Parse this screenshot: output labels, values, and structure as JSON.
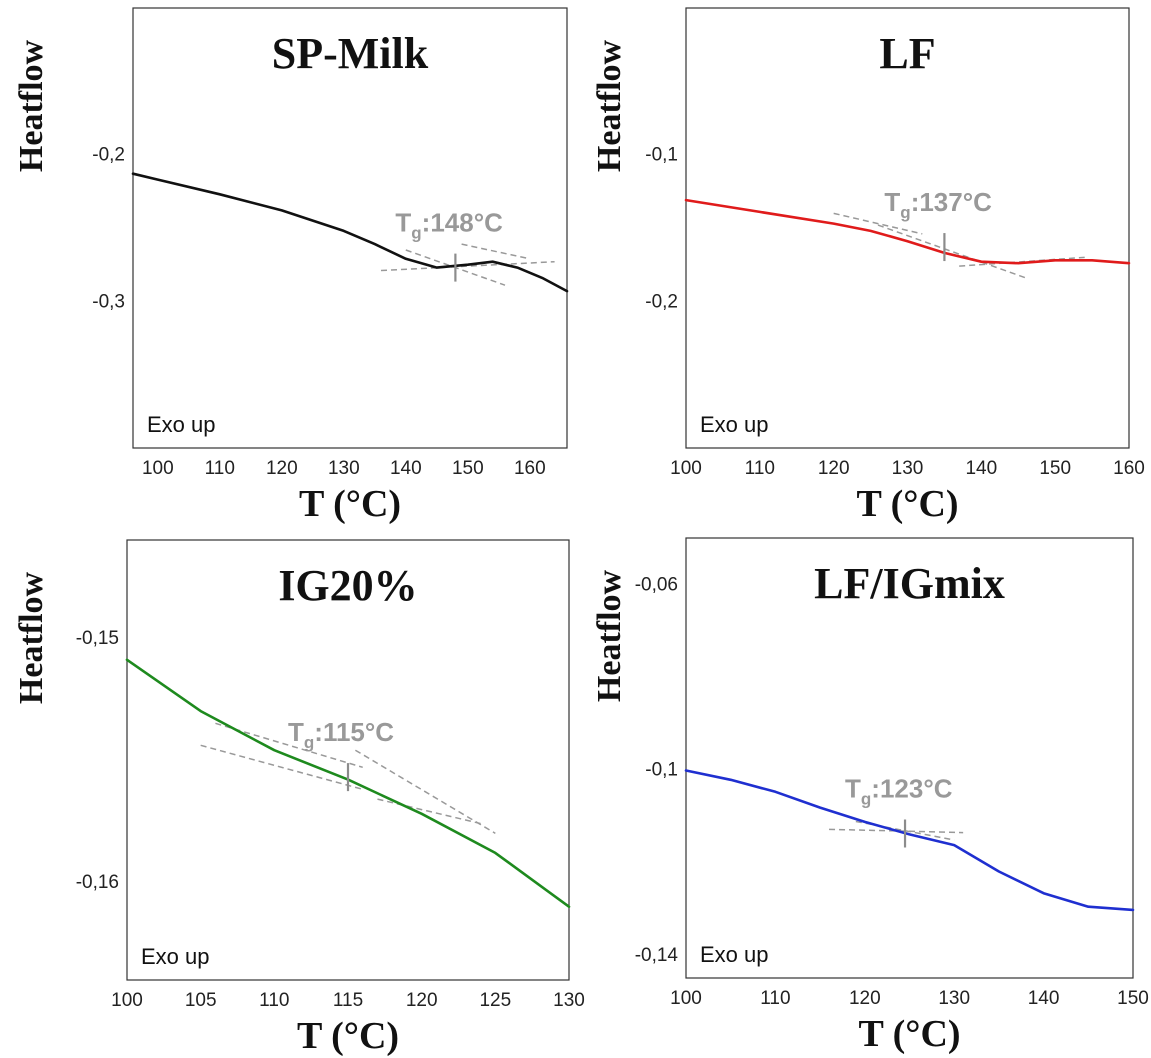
{
  "chart_data": [
    {
      "type": "line",
      "title": "SP-Milk",
      "xlabel": "T (°C)",
      "ylabel": "Heatflow",
      "xlim": [
        96,
        166
      ],
      "ylim": [
        -0.4,
        -0.1
      ],
      "x_ticks": [
        100,
        110,
        120,
        130,
        140,
        150,
        160
      ],
      "y_ticks": [
        {
          "value": -0.2,
          "label": "-0,2"
        },
        {
          "value": -0.3,
          "label": "-0,3"
        }
      ],
      "annotation": "Exo up",
      "tg_prefix": "T",
      "tg_sub": "g",
      "tg_value": ":148°C",
      "tg_x": 148,
      "tg_y": -0.277,
      "color": "#111111",
      "series": [
        {
          "x": [
            96,
            100,
            110,
            120,
            130,
            135,
            140,
            145,
            150,
            154,
            158,
            162,
            166
          ],
          "y": [
            -0.213,
            -0.217,
            -0.227,
            -0.238,
            -0.252,
            -0.261,
            -0.271,
            -0.277,
            -0.275,
            -0.273,
            -0.277,
            -0.284,
            -0.293
          ]
        }
      ],
      "guides": [
        {
          "x": [
            136,
            164
          ],
          "y": [
            -0.279,
            -0.273
          ]
        },
        {
          "x": [
            140,
            156
          ],
          "y": [
            -0.265,
            -0.289
          ]
        },
        {
          "x": [
            149,
            160
          ],
          "y": [
            -0.261,
            -0.271
          ]
        }
      ]
    },
    {
      "type": "line",
      "title": "LF",
      "xlabel": "T (°C)",
      "ylabel": "Heatflow",
      "xlim": [
        100,
        160
      ],
      "ylim": [
        -0.3,
        -0.0
      ],
      "x_ticks": [
        100,
        110,
        120,
        130,
        140,
        150,
        160
      ],
      "y_ticks": [
        {
          "value": -0.1,
          "label": "-0,1"
        },
        {
          "value": -0.2,
          "label": "-0,2"
        }
      ],
      "annotation": "Exo up",
      "tg_prefix": "T",
      "tg_sub": "g",
      "tg_value": ":137°C",
      "tg_x": 135,
      "tg_y": -0.163,
      "color": "#e01b1b",
      "series": [
        {
          "x": [
            100,
            110,
            120,
            125,
            130,
            135,
            140,
            145,
            150,
            155,
            160
          ],
          "y": [
            -0.131,
            -0.139,
            -0.147,
            -0.152,
            -0.159,
            -0.167,
            -0.173,
            -0.174,
            -0.172,
            -0.172,
            -0.174
          ]
        }
      ],
      "guides": [
        {
          "x": [
            120,
            132
          ],
          "y": [
            -0.14,
            -0.154
          ]
        },
        {
          "x": [
            126,
            146
          ],
          "y": [
            -0.148,
            -0.184
          ]
        },
        {
          "x": [
            137,
            154
          ],
          "y": [
            -0.176,
            -0.17
          ]
        }
      ]
    },
    {
      "type": "line",
      "title": "IG20%",
      "xlabel": "T (°C)",
      "ylabel": "Heatflow",
      "xlim": [
        100,
        130
      ],
      "ylim": [
        -0.164,
        -0.146
      ],
      "x_ticks": [
        100,
        105,
        110,
        115,
        120,
        125,
        130
      ],
      "y_ticks": [
        {
          "value": -0.15,
          "label": "-0,15"
        },
        {
          "value": -0.16,
          "label": "-0,16"
        }
      ],
      "annotation": "Exo up",
      "tg_prefix": "T",
      "tg_sub": "g",
      "tg_value": ":115°C",
      "tg_x": 115,
      "tg_y": -0.1557,
      "color": "#1e8a1e",
      "series": [
        {
          "x": [
            100,
            105,
            110,
            115,
            120,
            125,
            130
          ],
          "y": [
            -0.1509,
            -0.153,
            -0.1546,
            -0.1558,
            -0.1572,
            -0.1588,
            -0.161
          ]
        }
      ],
      "guides": [
        {
          "x": [
            105,
            116
          ],
          "y": [
            -0.1544,
            -0.1562
          ]
        },
        {
          "x": [
            106,
            116
          ],
          "y": [
            -0.1535,
            -0.1553
          ]
        },
        {
          "x": [
            115.5,
            125
          ],
          "y": [
            -0.1546,
            -0.158
          ]
        },
        {
          "x": [
            117,
            124
          ],
          "y": [
            -0.1566,
            -0.1576
          ]
        }
      ]
    },
    {
      "type": "line",
      "title": "LF/IGmix",
      "xlabel": "T (°C)",
      "ylabel": "Heatflow",
      "xlim": [
        100,
        150
      ],
      "ylim": [
        -0.145,
        -0.05
      ],
      "x_ticks": [
        100,
        110,
        120,
        130,
        140,
        150
      ],
      "y_ticks": [
        {
          "value": -0.06,
          "label": "-0,06"
        },
        {
          "value": -0.1,
          "label": "-0,1"
        },
        {
          "value": -0.14,
          "label": "-0,14"
        }
      ],
      "annotation": "Exo up",
      "tg_prefix": "T",
      "tg_sub": "g",
      "tg_value": ":123°C",
      "tg_x": 124.5,
      "tg_y": -0.1138,
      "color": "#1f2fd0",
      "series": [
        {
          "x": [
            100,
            105,
            110,
            115,
            120,
            125,
            130,
            135,
            140,
            145,
            150
          ],
          "y": [
            -0.1002,
            -0.1022,
            -0.1048,
            -0.1082,
            -0.1113,
            -0.114,
            -0.1163,
            -0.122,
            -0.1267,
            -0.1296,
            -0.1303
          ]
        }
      ],
      "guides": [
        {
          "x": [
            116,
            131
          ],
          "y": [
            -0.1129,
            -0.1136
          ]
        },
        {
          "x": [
            119,
            130
          ],
          "y": [
            -0.1112,
            -0.1152
          ]
        }
      ]
    }
  ]
}
